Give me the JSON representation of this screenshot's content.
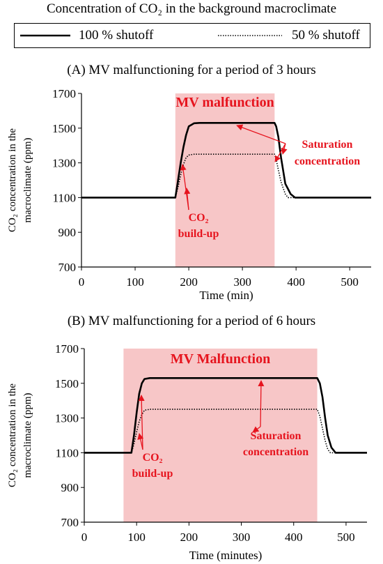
{
  "figure": {
    "title": "Concentration of CO₂ in the background macroclimate",
    "legend": [
      {
        "label": "100 % shutoff",
        "style": "solid"
      },
      {
        "label": "50 % shutoff",
        "style": "dotted"
      }
    ]
  },
  "colors": {
    "shade": "#f7c6c7",
    "annotation": "#e6141e",
    "line": "#000000"
  },
  "chart_data": [
    {
      "type": "line",
      "title": "(A) MV malfunctioning  for a period of 3 hours",
      "xlabel": "Time  (min)",
      "ylabel_line1": "CO₂ concentration  in the",
      "ylabel_line2": "macroclimate  (ppm)",
      "xlim": [
        0,
        540
      ],
      "ylim": [
        700,
        1700
      ],
      "xticks": [
        0,
        100,
        200,
        300,
        400,
        500
      ],
      "yticks": [
        700,
        900,
        1100,
        1300,
        1500,
        1700
      ],
      "shaded_region": {
        "x": [
          175,
          360
        ],
        "label": "MV malfunction"
      },
      "series": [
        {
          "name": "100 % shutoff",
          "style": "solid",
          "x": [
            0,
            175,
            180,
            185,
            190,
            195,
            200,
            210,
            220,
            360,
            363,
            367,
            372,
            380,
            390,
            398,
            540
          ],
          "y": [
            1100,
            1100,
            1200,
            1300,
            1390,
            1460,
            1510,
            1528,
            1530,
            1530,
            1510,
            1450,
            1330,
            1180,
            1120,
            1100,
            1100
          ]
        },
        {
          "name": "50 % shutoff",
          "style": "dotted",
          "x": [
            0,
            175,
            180,
            185,
            190,
            195,
            200,
            210,
            360,
            363,
            367,
            372,
            380,
            385,
            540
          ],
          "y": [
            1100,
            1100,
            1160,
            1230,
            1290,
            1330,
            1345,
            1350,
            1350,
            1320,
            1260,
            1190,
            1120,
            1100,
            1100
          ]
        }
      ],
      "annotations": [
        {
          "lines": [
            "Saturation",
            "concentration"
          ]
        },
        {
          "lines": [
            "CO₂",
            "build-up"
          ]
        }
      ]
    },
    {
      "type": "line",
      "title": "(B) MV malfunctioning  for a period of 6 hours",
      "xlabel": "Time  (minutes)",
      "ylabel_line1": "CO₂ concentration  in the",
      "ylabel_line2": "macroclimate  (ppm)",
      "xlim": [
        0,
        540
      ],
      "ylim": [
        700,
        1700
      ],
      "xticks": [
        0,
        100,
        200,
        300,
        400,
        500
      ],
      "yticks": [
        700,
        900,
        1100,
        1300,
        1500,
        1700
      ],
      "shaded_region": {
        "x": [
          75,
          445
        ],
        "label": "MV Malfunction"
      },
      "series": [
        {
          "name": "100 % shutoff",
          "style": "solid",
          "x": [
            0,
            90,
            95,
            100,
            105,
            110,
            115,
            125,
            445,
            450,
            455,
            460,
            465,
            472,
            480,
            540
          ],
          "y": [
            1100,
            1100,
            1200,
            1330,
            1440,
            1500,
            1525,
            1530,
            1530,
            1500,
            1420,
            1300,
            1200,
            1130,
            1100,
            1100
          ]
        },
        {
          "name": "50 % shutoff",
          "style": "dotted",
          "x": [
            0,
            90,
            95,
            100,
            105,
            110,
            115,
            125,
            445,
            450,
            455,
            460,
            465,
            470,
            540
          ],
          "y": [
            1100,
            1100,
            1150,
            1220,
            1280,
            1320,
            1345,
            1350,
            1350,
            1310,
            1240,
            1170,
            1120,
            1100,
            1100
          ]
        }
      ],
      "annotations": [
        {
          "lines": [
            "Saturation",
            "concentration"
          ]
        },
        {
          "lines": [
            "CO₂",
            "build-up"
          ]
        }
      ]
    }
  ]
}
